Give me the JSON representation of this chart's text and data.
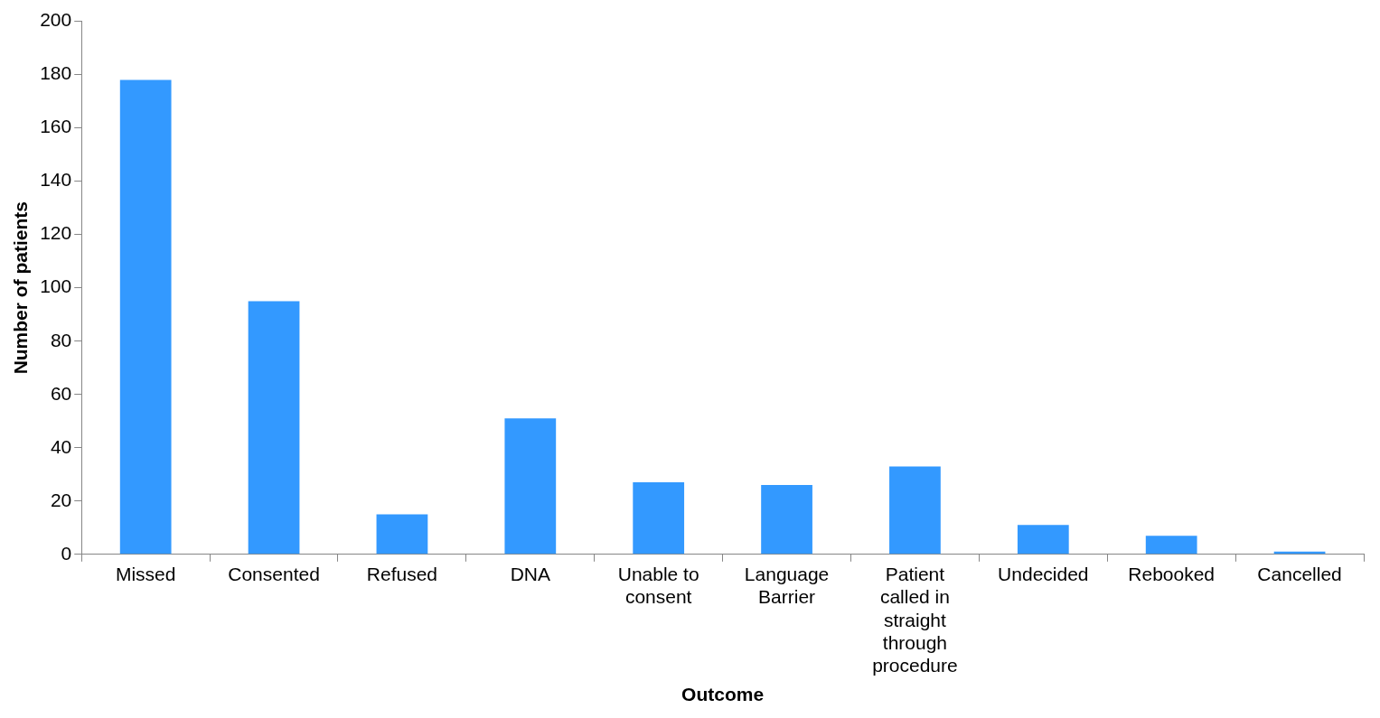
{
  "chart_data": {
    "type": "bar",
    "xlabel": "Outcome",
    "ylabel": "Number of patients",
    "categories": [
      "Missed",
      "Consented",
      "Refused",
      "DNA",
      "Unable to consent",
      "Language Barrier",
      "Patient called in straight through procedure",
      "Undecided",
      "Rebooked",
      "Cancelled"
    ],
    "values": [
      178,
      95,
      15,
      51,
      27,
      26,
      33,
      11,
      7,
      1
    ],
    "color": "#3399ff",
    "ylim": [
      0,
      200
    ],
    "yticks": [
      0,
      20,
      40,
      60,
      80,
      100,
      120,
      140,
      160,
      180,
      200
    ],
    "grid": false,
    "legend": false
  }
}
